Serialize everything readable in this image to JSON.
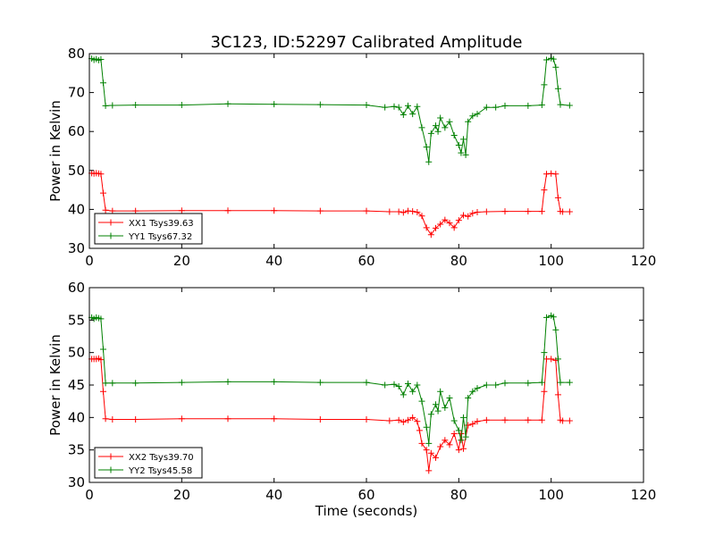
{
  "figure": {
    "title": "3C123, ID:52297 Calibrated Amplitude"
  },
  "colors": {
    "red": "#ff0000",
    "green": "#008000"
  },
  "chart_data": [
    {
      "type": "line",
      "markers": "plus",
      "title": "3C123, ID:52297 Calibrated Amplitude",
      "xlabel": "",
      "ylabel": "Power in Kelvin",
      "xlim": [
        0,
        120
      ],
      "ylim": [
        30,
        80
      ],
      "xticks": [
        0,
        20,
        40,
        60,
        80,
        100,
        120
      ],
      "yticks": [
        30,
        40,
        50,
        60,
        70,
        80
      ],
      "grid": false,
      "legend_position": "lower-left",
      "series": [
        {
          "name": "XX1 Tsys39.63",
          "color": "#ff0000",
          "x": [
            0.5,
            1,
            1.5,
            2,
            2.5,
            3,
            3.5,
            5,
            10,
            20,
            30,
            40,
            50,
            60,
            65,
            67,
            68,
            69,
            70,
            71,
            72,
            73,
            74,
            75,
            76,
            77,
            78,
            79,
            80,
            81,
            82,
            83,
            84,
            86,
            90,
            95,
            98,
            98.5,
            99,
            100,
            101,
            101.5,
            102,
            102.5,
            104
          ],
          "y": [
            49.3,
            49.2,
            49.3,
            49.2,
            49.1,
            44.2,
            39.8,
            39.6,
            39.6,
            39.7,
            39.7,
            39.7,
            39.6,
            39.6,
            39.4,
            39.4,
            39.2,
            39.6,
            39.5,
            39.3,
            38.3,
            35.3,
            33.5,
            35.2,
            36.2,
            37.3,
            36.5,
            35.3,
            37.2,
            38.5,
            38.2,
            39.0,
            39.3,
            39.4,
            39.5,
            39.5,
            39.5,
            45.0,
            49.1,
            49.2,
            49.1,
            43.0,
            39.5,
            39.4,
            39.4
          ]
        },
        {
          "name": "YY1 Tsys67.32",
          "color": "#008000",
          "x": [
            0.5,
            1,
            1.5,
            2,
            2.5,
            3,
            3.5,
            5,
            10,
            20,
            30,
            40,
            50,
            60,
            64,
            66,
            67,
            68,
            69,
            70,
            71,
            72,
            73,
            73.5,
            74,
            75,
            75.5,
            76,
            77,
            78,
            79,
            80,
            80.5,
            81,
            81.5,
            82,
            83,
            84,
            86,
            88,
            90,
            95,
            98,
            98.5,
            99,
            100,
            100.5,
            101,
            101.5,
            102,
            104
          ],
          "y": [
            78.7,
            78.4,
            78.6,
            78.3,
            78.5,
            72.5,
            66.6,
            66.7,
            66.8,
            66.8,
            67.1,
            67.0,
            66.9,
            66.8,
            66.2,
            66.4,
            66.2,
            64.3,
            66.6,
            64.5,
            66.4,
            61.0,
            56.0,
            52.2,
            59.5,
            61.5,
            60.0,
            63.5,
            61.0,
            62.5,
            59.0,
            56.5,
            54.5,
            58.0,
            54.0,
            62.5,
            64.0,
            64.5,
            66.2,
            66.2,
            66.6,
            66.6,
            66.8,
            72.0,
            78.4,
            78.8,
            78.6,
            76.5,
            71.0,
            66.9,
            66.7
          ]
        }
      ]
    },
    {
      "type": "line",
      "markers": "plus",
      "title": "",
      "xlabel": "Time (seconds)",
      "ylabel": "Power in Kelvin",
      "xlim": [
        0,
        120
      ],
      "ylim": [
        30,
        60
      ],
      "xticks": [
        0,
        20,
        40,
        60,
        80,
        100,
        120
      ],
      "yticks": [
        30,
        35,
        40,
        45,
        50,
        55,
        60
      ],
      "grid": false,
      "legend_position": "lower-left",
      "series": [
        {
          "name": "XX2 Tsys39.70",
          "color": "#ff0000",
          "x": [
            0.5,
            1,
            1.5,
            2,
            2.5,
            3,
            3.5,
            5,
            10,
            20,
            30,
            40,
            50,
            60,
            65,
            67,
            68,
            69,
            70,
            71,
            71.5,
            72,
            73,
            73.5,
            74,
            75,
            76,
            77,
            78,
            79,
            80,
            80.5,
            81,
            82,
            83,
            84,
            86,
            90,
            95,
            98,
            98.5,
            99,
            100,
            101,
            101.5,
            102,
            102.5,
            104
          ],
          "y": [
            49.0,
            49.0,
            49.0,
            49.1,
            48.9,
            44.0,
            39.8,
            39.7,
            39.7,
            39.8,
            39.8,
            39.8,
            39.7,
            39.7,
            39.5,
            39.6,
            39.3,
            39.6,
            40.0,
            39.4,
            38.0,
            36.0,
            35.0,
            31.8,
            34.5,
            33.8,
            35.5,
            36.5,
            35.8,
            37.5,
            35.0,
            37.5,
            35.2,
            38.8,
            39.0,
            39.4,
            39.6,
            39.6,
            39.6,
            39.6,
            44.0,
            49.0,
            49.0,
            48.8,
            43.5,
            39.6,
            39.5,
            39.5
          ]
        },
        {
          "name": "YY2 Tsys45.58",
          "color": "#008000",
          "x": [
            0.5,
            1,
            1.5,
            2,
            2.5,
            3,
            3.5,
            5,
            10,
            20,
            30,
            40,
            50,
            60,
            64,
            66,
            67,
            68,
            69,
            70,
            71,
            72,
            73,
            73.5,
            74,
            75,
            75.5,
            76,
            77,
            78,
            79,
            80,
            80.5,
            81,
            81.5,
            82,
            83,
            84,
            86,
            88,
            90,
            95,
            98,
            98.5,
            99,
            100,
            100.5,
            101,
            101.5,
            102,
            104
          ],
          "y": [
            55.4,
            55.2,
            55.4,
            55.3,
            55.2,
            50.5,
            45.3,
            45.3,
            45.3,
            45.4,
            45.5,
            45.5,
            45.4,
            45.4,
            45.0,
            45.1,
            44.8,
            43.5,
            45.2,
            44.0,
            45.0,
            42.5,
            38.5,
            36.0,
            40.5,
            42.0,
            41.0,
            44.0,
            41.5,
            43.0,
            39.5,
            38.0,
            36.5,
            40.0,
            37.0,
            43.0,
            44.0,
            44.5,
            45.0,
            45.0,
            45.3,
            45.3,
            45.4,
            50.0,
            55.4,
            55.7,
            55.5,
            53.5,
            49.0,
            45.4,
            45.4
          ]
        }
      ]
    }
  ]
}
